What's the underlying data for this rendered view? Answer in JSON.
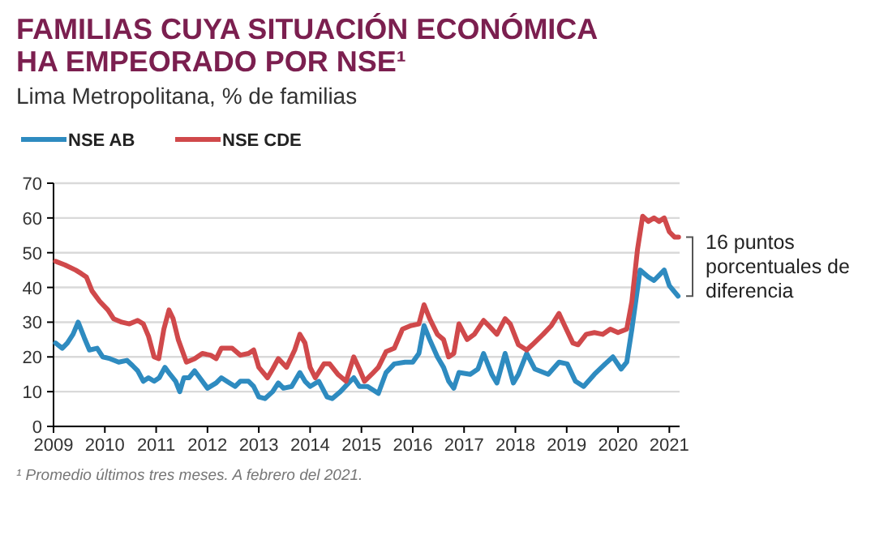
{
  "chart_data": {
    "type": "line",
    "title": "FAMILIAS CUYA SITUACIÓN ECONÓMICA HA EMPEORADO POR NSE¹",
    "subtitle": "Lima Metropolitana,  % de familias",
    "annotations": [
      "16 puntos porcentuales de diferencia",
      "¹ Promedio últimos tres meses. A febrero del 2021."
    ],
    "xlim": [
      2009,
      2021.2
    ],
    "xticks": [
      2009,
      2010,
      2011,
      2012,
      2013,
      2014,
      2015,
      2016,
      2017,
      2018,
      2019,
      2020,
      2021
    ],
    "ylim": [
      0,
      70
    ],
    "yticks": [
      0,
      10,
      20,
      30,
      40,
      50,
      60,
      70
    ],
    "grid": "y",
    "legend": "top left",
    "marker": "none",
    "line_style": "solid",
    "series": [
      {
        "name": "NSE AB",
        "color": "#2e8bc0",
        "x": [
          2009.04,
          2009.17,
          2009.27,
          2009.38,
          2009.48,
          2009.6,
          2009.7,
          2009.85,
          2009.96,
          2010.1,
          2010.27,
          2010.43,
          2010.54,
          2010.64,
          2010.75,
          2010.85,
          2010.96,
          2011.06,
          2011.17,
          2011.27,
          2011.38,
          2011.46,
          2011.54,
          2011.64,
          2011.75,
          2011.85,
          2012.0,
          2012.17,
          2012.27,
          2012.43,
          2012.54,
          2012.64,
          2012.8,
          2012.9,
          2013.0,
          2013.12,
          2013.27,
          2013.38,
          2013.48,
          2013.64,
          2013.8,
          2013.9,
          2014.0,
          2014.17,
          2014.33,
          2014.43,
          2014.59,
          2014.75,
          2014.85,
          2014.96,
          2015.12,
          2015.33,
          2015.48,
          2015.64,
          2015.85,
          2016.0,
          2016.12,
          2016.22,
          2016.33,
          2016.48,
          2016.6,
          2016.7,
          2016.8,
          2016.9,
          2017.12,
          2017.27,
          2017.38,
          2017.54,
          2017.64,
          2017.8,
          2017.96,
          2018.06,
          2018.22,
          2018.38,
          2018.64,
          2018.85,
          2019.01,
          2019.17,
          2019.33,
          2019.54,
          2019.75,
          2019.9,
          2020.06,
          2020.17,
          2020.27,
          2020.43,
          2020.59,
          2020.7,
          2020.8,
          2020.9,
          2021.0,
          2021.17
        ],
        "values": [
          24,
          22.5,
          24,
          26.5,
          30,
          25.5,
          22,
          22.5,
          20,
          19.5,
          18.5,
          19,
          17.5,
          16,
          13,
          14,
          13,
          14,
          17,
          15,
          13,
          10,
          14,
          14,
          16,
          14,
          11,
          12.5,
          14,
          12.5,
          11.5,
          13,
          13,
          11.5,
          8.5,
          8,
          10,
          12.5,
          11,
          11.5,
          15.5,
          13,
          11.5,
          13,
          8.5,
          8,
          10,
          12.5,
          14,
          11.5,
          11.5,
          9.5,
          15.5,
          18,
          18.5,
          18.5,
          21,
          29,
          25,
          20,
          17,
          13,
          11,
          15.5,
          15,
          16.5,
          21,
          15,
          12.5,
          21,
          12.5,
          15,
          21,
          16.5,
          15,
          18.5,
          18,
          13,
          11.5,
          15,
          18,
          20,
          16.5,
          18.5,
          28,
          45,
          43,
          42,
          43.5,
          45,
          40.5,
          37.5
        ]
      },
      {
        "name": "NSE CDE",
        "color": "#d0494b",
        "x": [
          2009.04,
          2009.22,
          2009.43,
          2009.54,
          2009.64,
          2009.75,
          2009.9,
          2010.06,
          2010.17,
          2010.33,
          2010.48,
          2010.64,
          2010.75,
          2010.85,
          2010.96,
          2011.05,
          2011.15,
          2011.25,
          2011.33,
          2011.43,
          2011.59,
          2011.75,
          2011.9,
          2012.06,
          2012.17,
          2012.27,
          2012.48,
          2012.64,
          2012.8,
          2012.9,
          2013.0,
          2013.17,
          2013.27,
          2013.38,
          2013.54,
          2013.7,
          2013.8,
          2013.9,
          2014.0,
          2014.1,
          2014.27,
          2014.38,
          2014.54,
          2014.7,
          2014.85,
          2014.96,
          2015.06,
          2015.2,
          2015.33,
          2015.48,
          2015.64,
          2015.8,
          2015.96,
          2016.12,
          2016.22,
          2016.33,
          2016.48,
          2016.6,
          2016.7,
          2016.8,
          2016.9,
          2017.06,
          2017.2,
          2017.38,
          2017.48,
          2017.64,
          2017.8,
          2017.9,
          2018.06,
          2018.22,
          2018.33,
          2018.54,
          2018.7,
          2018.85,
          2018.96,
          2019.12,
          2019.22,
          2019.38,
          2019.54,
          2019.7,
          2019.85,
          2020.0,
          2020.17,
          2020.27,
          2020.38,
          2020.48,
          2020.59,
          2020.7,
          2020.8,
          2020.9,
          2021.0,
          2021.1,
          2021.18
        ],
        "values": [
          47.5,
          46.5,
          45,
          44,
          43,
          39,
          36,
          33.5,
          31,
          30,
          29.5,
          30.5,
          29.5,
          26,
          20,
          19.5,
          28,
          33.5,
          31,
          25,
          18.5,
          19.5,
          21,
          20.5,
          19.5,
          22.5,
          22.5,
          20.5,
          21,
          22,
          17,
          14,
          16.5,
          19.5,
          17,
          22,
          26.5,
          24,
          17,
          14,
          18,
          18,
          15,
          13,
          20,
          16.5,
          13,
          15,
          17,
          21.5,
          22.5,
          28,
          29,
          29.5,
          35,
          31,
          26.5,
          25,
          20,
          21,
          29.5,
          25,
          26.5,
          30.5,
          29,
          26.5,
          31,
          29.5,
          23.5,
          22,
          23.5,
          26.5,
          29,
          32.5,
          29,
          24,
          23.5,
          26.5,
          27,
          26.5,
          28,
          27,
          28,
          36,
          51,
          60.5,
          59,
          60,
          59,
          60,
          56,
          54.5,
          54.5
        ]
      }
    ]
  }
}
